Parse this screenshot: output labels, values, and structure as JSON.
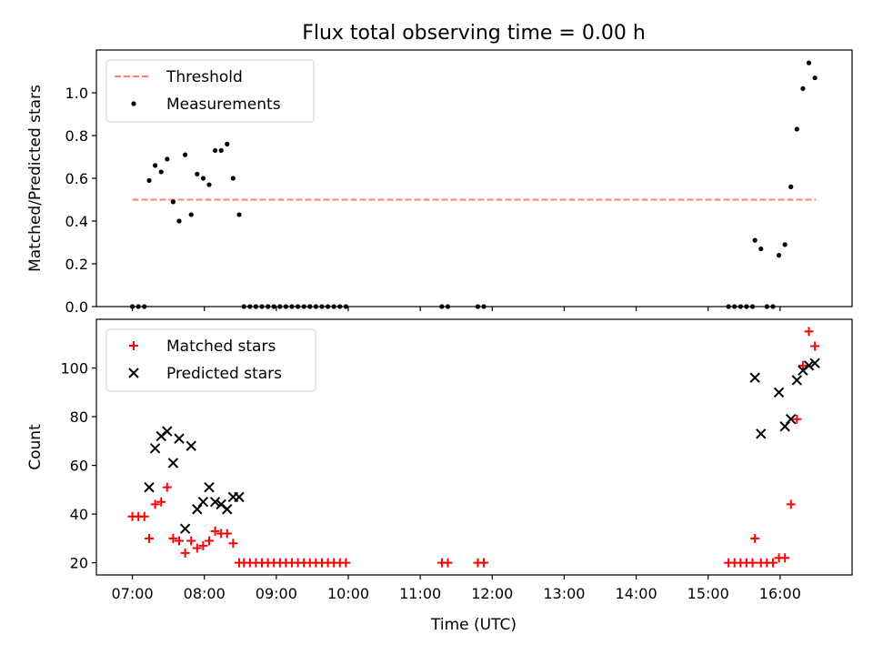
{
  "figure": {
    "title": "Flux total observing time = 0.00 h",
    "xlabel": "Time (UTC)"
  },
  "chart_data": [
    {
      "type": "scatter",
      "title": "Flux total observing time = 0.00 h",
      "xlabel": "",
      "ylabel": "Matched/Predicted stars",
      "xlim": [
        "06:30",
        "17:00"
      ],
      "ylim": [
        0,
        1.2
      ],
      "yticks": [
        0.0,
        0.2,
        0.4,
        0.6,
        0.8,
        1.0
      ],
      "ytick_labels": [
        "0.0",
        "0.2",
        "0.4",
        "0.6",
        "0.8",
        "1.0"
      ],
      "legend_position": "top-left",
      "threshold": {
        "name": "Threshold",
        "value": 0.5,
        "x_start": "07:00",
        "x_end": "16:30",
        "color": "#ff7f7f",
        "style": "dashed"
      },
      "series": [
        {
          "name": "Measurements",
          "marker": "dot",
          "color": "#000000",
          "points": [
            [
              "07:00",
              0.0
            ],
            [
              "07:05",
              0.0
            ],
            [
              "07:10",
              0.0
            ],
            [
              "07:14",
              0.59
            ],
            [
              "07:19",
              0.66
            ],
            [
              "07:24",
              0.63
            ],
            [
              "07:29",
              0.69
            ],
            [
              "07:34",
              0.49
            ],
            [
              "07:39",
              0.4
            ],
            [
              "07:44",
              0.71
            ],
            [
              "07:49",
              0.43
            ],
            [
              "07:54",
              0.62
            ],
            [
              "07:59",
              0.6
            ],
            [
              "08:04",
              0.57
            ],
            [
              "08:09",
              0.73
            ],
            [
              "08:14",
              0.73
            ],
            [
              "08:19",
              0.76
            ],
            [
              "08:24",
              0.6
            ],
            [
              "08:29",
              0.43
            ],
            [
              "08:33",
              0.0
            ],
            [
              "08:38",
              0.0
            ],
            [
              "08:43",
              0.0
            ],
            [
              "08:48",
              0.0
            ],
            [
              "08:53",
              0.0
            ],
            [
              "08:58",
              0.0
            ],
            [
              "09:03",
              0.0
            ],
            [
              "09:08",
              0.0
            ],
            [
              "09:13",
              0.0
            ],
            [
              "09:18",
              0.0
            ],
            [
              "09:23",
              0.0
            ],
            [
              "09:28",
              0.0
            ],
            [
              "09:33",
              0.0
            ],
            [
              "09:38",
              0.0
            ],
            [
              "09:43",
              0.0
            ],
            [
              "09:48",
              0.0
            ],
            [
              "09:53",
              0.0
            ],
            [
              "09:58",
              0.0
            ],
            [
              "11:18",
              0.0
            ],
            [
              "11:23",
              0.0
            ],
            [
              "11:48",
              0.0
            ],
            [
              "11:53",
              0.0
            ],
            [
              "15:17",
              0.0
            ],
            [
              "15:22",
              0.0
            ],
            [
              "15:27",
              0.0
            ],
            [
              "15:32",
              0.0
            ],
            [
              "15:37",
              0.0
            ],
            [
              "15:39",
              0.31
            ],
            [
              "15:44",
              0.27
            ],
            [
              "15:49",
              0.0
            ],
            [
              "15:54",
              0.0
            ],
            [
              "15:59",
              0.24
            ],
            [
              "16:04",
              0.29
            ],
            [
              "16:09",
              0.56
            ],
            [
              "16:14",
              0.83
            ],
            [
              "16:19",
              1.02
            ],
            [
              "16:24",
              1.14
            ],
            [
              "16:29",
              1.07
            ]
          ]
        }
      ]
    },
    {
      "type": "scatter",
      "title": "",
      "xlabel": "Time (UTC)",
      "ylabel": "Count",
      "xlim": [
        "06:30",
        "17:00"
      ],
      "ylim": [
        15,
        120
      ],
      "xticks": [
        "07:00",
        "08:00",
        "09:00",
        "10:00",
        "11:00",
        "12:00",
        "13:00",
        "14:00",
        "15:00",
        "16:00"
      ],
      "yticks": [
        20,
        40,
        60,
        80,
        100
      ],
      "ytick_labels": [
        "20",
        "40",
        "60",
        "80",
        "100"
      ],
      "legend_position": "top-left",
      "series": [
        {
          "name": "Matched stars",
          "marker": "plus",
          "color": "#ff0000",
          "points": [
            [
              "07:00",
              39
            ],
            [
              "07:05",
              39
            ],
            [
              "07:10",
              39
            ],
            [
              "07:14",
              30
            ],
            [
              "07:19",
              44
            ],
            [
              "07:24",
              45
            ],
            [
              "07:29",
              51
            ],
            [
              "07:34",
              30
            ],
            [
              "07:39",
              29
            ],
            [
              "07:44",
              24
            ],
            [
              "07:49",
              29
            ],
            [
              "07:54",
              26
            ],
            [
              "07:59",
              27
            ],
            [
              "08:04",
              29
            ],
            [
              "08:09",
              33
            ],
            [
              "08:14",
              32
            ],
            [
              "08:19",
              32
            ],
            [
              "08:24",
              28
            ],
            [
              "08:29",
              20
            ],
            [
              "08:33",
              20
            ],
            [
              "08:38",
              20
            ],
            [
              "08:43",
              20
            ],
            [
              "08:48",
              20
            ],
            [
              "08:53",
              20
            ],
            [
              "08:58",
              20
            ],
            [
              "09:03",
              20
            ],
            [
              "09:08",
              20
            ],
            [
              "09:13",
              20
            ],
            [
              "09:18",
              20
            ],
            [
              "09:23",
              20
            ],
            [
              "09:28",
              20
            ],
            [
              "09:33",
              20
            ],
            [
              "09:38",
              20
            ],
            [
              "09:43",
              20
            ],
            [
              "09:48",
              20
            ],
            [
              "09:53",
              20
            ],
            [
              "09:58",
              20
            ],
            [
              "11:18",
              20
            ],
            [
              "11:23",
              20
            ],
            [
              "11:48",
              20
            ],
            [
              "11:53",
              20
            ],
            [
              "15:17",
              20
            ],
            [
              "15:22",
              20
            ],
            [
              "15:27",
              20
            ],
            [
              "15:32",
              20
            ],
            [
              "15:37",
              20
            ],
            [
              "15:39",
              30
            ],
            [
              "15:44",
              20
            ],
            [
              "15:49",
              20
            ],
            [
              "15:54",
              20
            ],
            [
              "15:59",
              22
            ],
            [
              "16:04",
              22
            ],
            [
              "16:09",
              44
            ],
            [
              "16:14",
              79
            ],
            [
              "16:19",
              101
            ],
            [
              "16:24",
              115
            ],
            [
              "16:29",
              109
            ]
          ]
        },
        {
          "name": "Predicted stars",
          "marker": "x",
          "color": "#000000",
          "points": [
            [
              "07:14",
              51
            ],
            [
              "07:19",
              67
            ],
            [
              "07:24",
              72
            ],
            [
              "07:29",
              74
            ],
            [
              "07:34",
              61
            ],
            [
              "07:39",
              71
            ],
            [
              "07:44",
              34
            ],
            [
              "07:49",
              68
            ],
            [
              "07:54",
              42
            ],
            [
              "07:59",
              45
            ],
            [
              "08:04",
              51
            ],
            [
              "08:09",
              45
            ],
            [
              "08:14",
              44
            ],
            [
              "08:19",
              42
            ],
            [
              "08:24",
              47
            ],
            [
              "08:29",
              47
            ],
            [
              "15:39",
              96
            ],
            [
              "15:44",
              73
            ],
            [
              "15:59",
              90
            ],
            [
              "16:04",
              76
            ],
            [
              "16:09",
              79
            ],
            [
              "16:14",
              95
            ],
            [
              "16:19",
              99
            ],
            [
              "16:24",
              101
            ],
            [
              "16:29",
              102
            ]
          ]
        }
      ]
    }
  ]
}
